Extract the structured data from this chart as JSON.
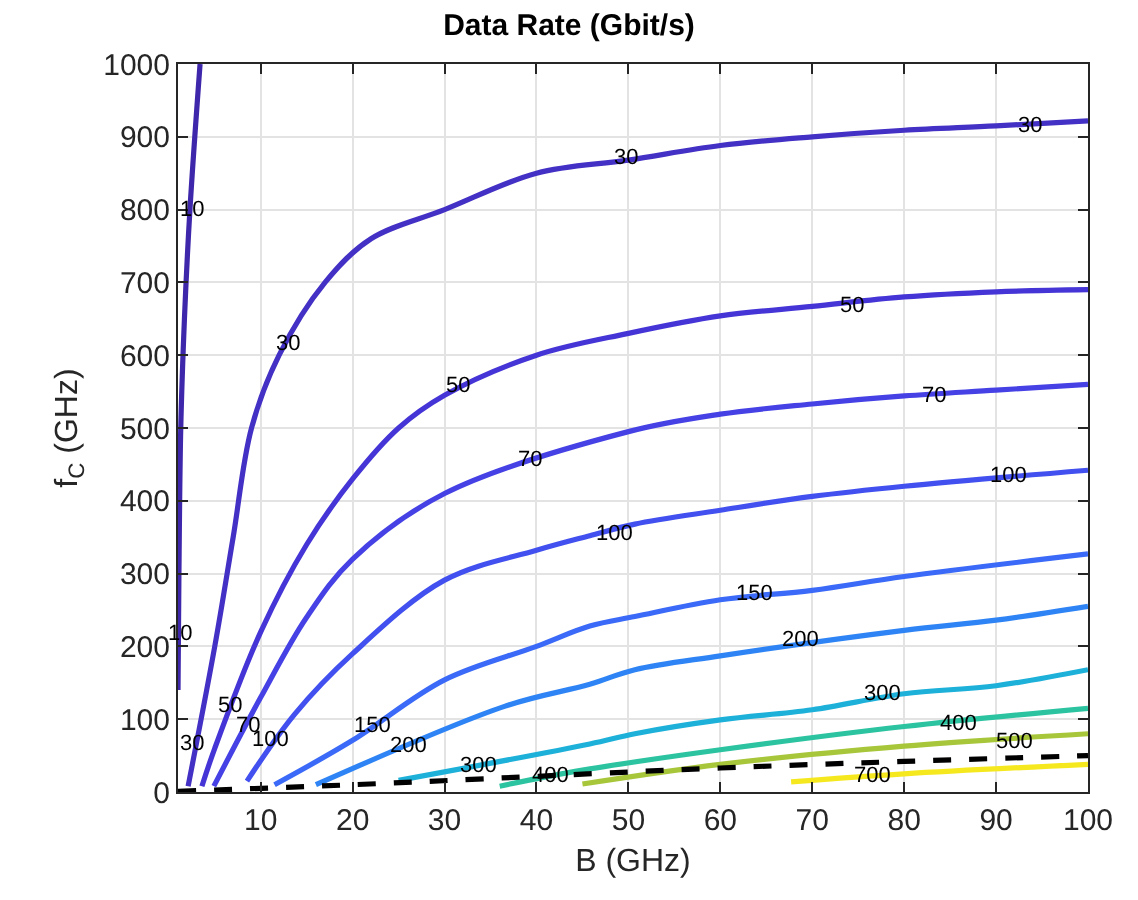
{
  "chart_data": {
    "type": "line",
    "title": "Data Rate (Gbit/s)",
    "xlabel": "B (GHz)",
    "ylabel": "f$_{C}$ (GHz)",
    "xlim": [
      1,
      100
    ],
    "xticks": [
      10,
      20,
      30,
      40,
      50,
      60,
      70,
      80,
      90,
      100
    ],
    "ylim": [
      0,
      1000
    ],
    "yticks": [
      0,
      100,
      200,
      300,
      400,
      500,
      600,
      700,
      800,
      900,
      1000
    ],
    "grid": true,
    "marker": "none",
    "series": [
      {
        "color": "#3e27ab",
        "x": [
          1,
          1.1,
          1.3,
          1.7,
          2.3,
          3.4
        ],
        "values": [
          140,
          300,
          500,
          650,
          800,
          1000
        ]
      },
      {
        "color": "#4330c4",
        "x": [
          2.1,
          5,
          7,
          9,
          12,
          17,
          22,
          30,
          40,
          50,
          60,
          70,
          80,
          90,
          100
        ],
        "values": [
          8,
          200,
          350,
          500,
          600,
          700,
          760,
          800,
          850,
          868,
          888,
          900,
          909,
          915,
          922
        ]
      },
      {
        "color": "#4535d6",
        "x": [
          3.6,
          5,
          10,
          15,
          20,
          25,
          30,
          40,
          50,
          60,
          70,
          80,
          90,
          100
        ],
        "values": [
          8,
          60,
          220,
          340,
          430,
          500,
          545,
          600,
          630,
          654,
          667,
          680,
          687,
          690
        ]
      },
      {
        "color": "#4541e5",
        "x": [
          4.9,
          10,
          15,
          20,
          30,
          50,
          60,
          70,
          80,
          90,
          100
        ],
        "values": [
          8,
          130,
          240,
          320,
          410,
          495,
          519,
          533,
          544,
          552,
          560
        ]
      },
      {
        "color": "#4150ee",
        "x": [
          8.5,
          13.7,
          20,
          30,
          40,
          45.8,
          50.7,
          60,
          70,
          80,
          100
        ],
        "values": [
          15,
          107,
          190,
          291,
          332,
          352,
          368,
          387,
          406,
          420,
          442
        ]
      },
      {
        "color": "#3a6af7",
        "x": [
          11.5,
          20,
          30,
          40,
          45.8,
          50.7,
          60,
          70,
          80,
          100
        ],
        "values": [
          10,
          71,
          154,
          200,
          228,
          241,
          264,
          277,
          296,
          327
        ]
      },
      {
        "color": "#2f84f5",
        "x": [
          16,
          36.6,
          45.8,
          50.7,
          60,
          80,
          90,
          100
        ],
        "values": [
          10,
          118,
          148,
          168,
          187,
          222,
          236,
          255
        ]
      },
      {
        "color": "#1db0d9",
        "x": [
          25,
          45.8,
          50.7,
          60,
          70,
          80,
          90,
          100
        ],
        "values": [
          16,
          66,
          80,
          99,
          113,
          135,
          146,
          168
        ]
      },
      {
        "color": "#2cc3a0",
        "x": [
          36,
          45,
          60,
          80,
          100
        ],
        "values": [
          8,
          30,
          58,
          90,
          115
        ]
      },
      {
        "color": "#a7c63a",
        "x": [
          45,
          60,
          80,
          100
        ],
        "values": [
          11,
          38,
          63,
          80
        ]
      },
      {
        "color": "#f5e81f",
        "x": [
          67.7,
          80,
          100
        ],
        "values": [
          14,
          25,
          38
        ]
      },
      {
        "color": "#000000",
        "line_style": "dashed",
        "x": [
          1,
          20,
          60,
          80,
          100
        ],
        "values": [
          1,
          10,
          33,
          42,
          50
        ]
      }
    ],
    "annotations": [
      {
        "text": "10",
        "x": 2.6,
        "y": 800
      },
      {
        "text": "10",
        "x": 1.3,
        "y": 217
      },
      {
        "text": "30",
        "x": 13,
        "y": 615
      },
      {
        "text": "30",
        "x": 49.7,
        "y": 871
      },
      {
        "text": "30",
        "x": 93.6,
        "y": 915
      },
      {
        "text": "30",
        "x": 2.6,
        "y": 66
      },
      {
        "text": "50",
        "x": 31.5,
        "y": 558
      },
      {
        "text": "50",
        "x": 74.3,
        "y": 667
      },
      {
        "text": "50",
        "x": 6.6,
        "y": 118
      },
      {
        "text": "70",
        "x": 39.4,
        "y": 456
      },
      {
        "text": "70",
        "x": 83.3,
        "y": 544
      },
      {
        "text": "70",
        "x": 8.6,
        "y": 90
      },
      {
        "text": "100",
        "x": 11,
        "y": 71
      },
      {
        "text": "100",
        "x": 48.4,
        "y": 355
      },
      {
        "text": "100",
        "x": 91.4,
        "y": 434
      },
      {
        "text": "150",
        "x": 22,
        "y": 90
      },
      {
        "text": "150",
        "x": 63.6,
        "y": 272
      },
      {
        "text": "200",
        "x": 26,
        "y": 63
      },
      {
        "text": "200",
        "x": 68.7,
        "y": 209
      },
      {
        "text": "300",
        "x": 33.6,
        "y": 36
      },
      {
        "text": "300",
        "x": 77.5,
        "y": 135
      },
      {
        "text": "400",
        "x": 41.5,
        "y": 22
      },
      {
        "text": "400",
        "x": 85.9,
        "y": 93
      },
      {
        "text": "500",
        "x": 91.9,
        "y": 69
      },
      {
        "text": "700",
        "x": 76.4,
        "y": 22
      }
    ]
  }
}
